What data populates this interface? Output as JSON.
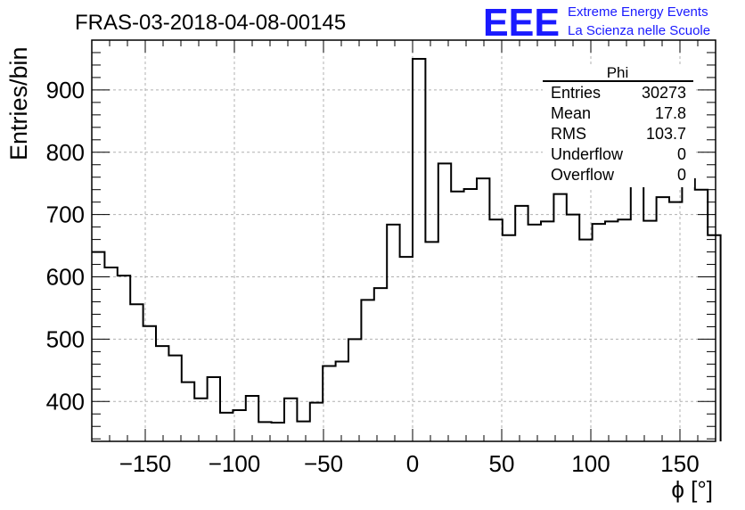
{
  "header": {
    "run_title": "FRAS-03-2018-04-08-00145",
    "logo_text": "EEE",
    "logo_line1": "Extreme Energy Events",
    "logo_line2": "La Scienza nelle Scuole",
    "logo_color": "#1a1aff"
  },
  "stats": {
    "title": "Phi",
    "rows": [
      {
        "label": "Entries",
        "value": "30273"
      },
      {
        "label": "Mean",
        "value": "17.8"
      },
      {
        "label": "RMS",
        "value": "103.7"
      },
      {
        "label": "Underflow",
        "value": "0"
      },
      {
        "label": "Overflow",
        "value": "0"
      }
    ]
  },
  "chart_data": {
    "type": "bar",
    "style": "step-histogram",
    "ylabel": "Entries/bin",
    "xlabel": "ϕ [°]",
    "xlim": [
      -180,
      170
    ],
    "ylim": [
      336,
      980
    ],
    "bin_width": 7.2,
    "x_ticks": [
      -150,
      -100,
      -50,
      0,
      50,
      100,
      150
    ],
    "y_ticks": [
      400,
      500,
      600,
      700,
      800,
      900
    ],
    "grid": true,
    "line_color": "#000000",
    "values": [
      640,
      615,
      602,
      556,
      521,
      489,
      474,
      431,
      405,
      439,
      382,
      386,
      409,
      367,
      366,
      405,
      368,
      398,
      457,
      464,
      500,
      563,
      582,
      684,
      632,
      950,
      656,
      782,
      737,
      741,
      758,
      692,
      667,
      714,
      684,
      689,
      733,
      700,
      660,
      685,
      689,
      692,
      747,
      690,
      728,
      720,
      757,
      740,
      667
    ]
  }
}
